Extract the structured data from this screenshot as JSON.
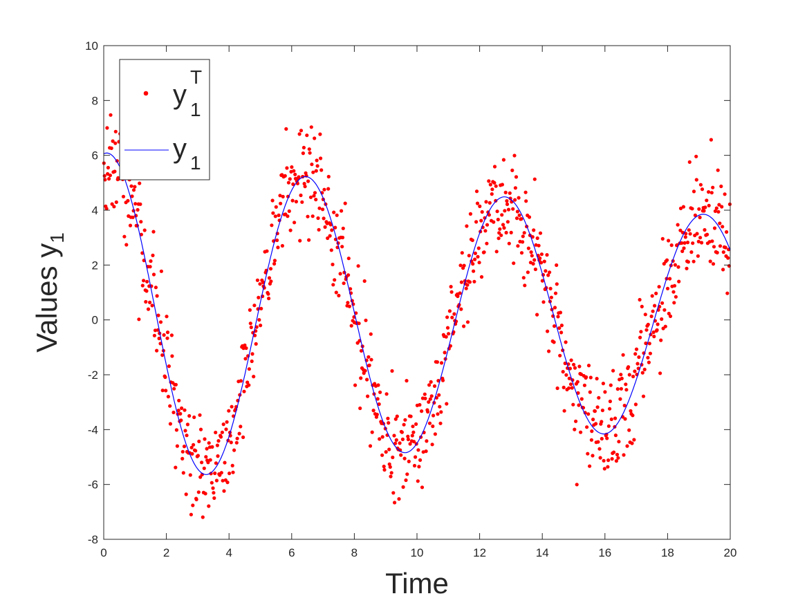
{
  "chart_data": {
    "type": "scatter",
    "xlabel": "Time",
    "ylabel": {
      "main": "Values y",
      "sub": "1"
    },
    "xlim": [
      0,
      20
    ],
    "ylim": [
      -8,
      10
    ],
    "xticks": [
      0,
      2,
      4,
      6,
      8,
      10,
      12,
      14,
      16,
      18,
      20
    ],
    "yticks": [
      -8,
      -6,
      -4,
      -2,
      0,
      2,
      4,
      6,
      8,
      10
    ],
    "grid": false,
    "legend_position": "top-left",
    "model_curve": {
      "form": "A * exp(-k * t) * cos(w * t + p)",
      "A": 6.1,
      "k": 0.024,
      "w": 0.99,
      "p": -0.12
    },
    "series": [
      {
        "name": {
          "main": "y",
          "sub": "1",
          "sup": "T"
        },
        "kind": "scatter",
        "color": "#ff0000",
        "count": 1000,
        "noise_sd": 1.0
      },
      {
        "name": {
          "main": "y",
          "sub": "1"
        },
        "kind": "line",
        "color": "#0000ff"
      }
    ]
  }
}
